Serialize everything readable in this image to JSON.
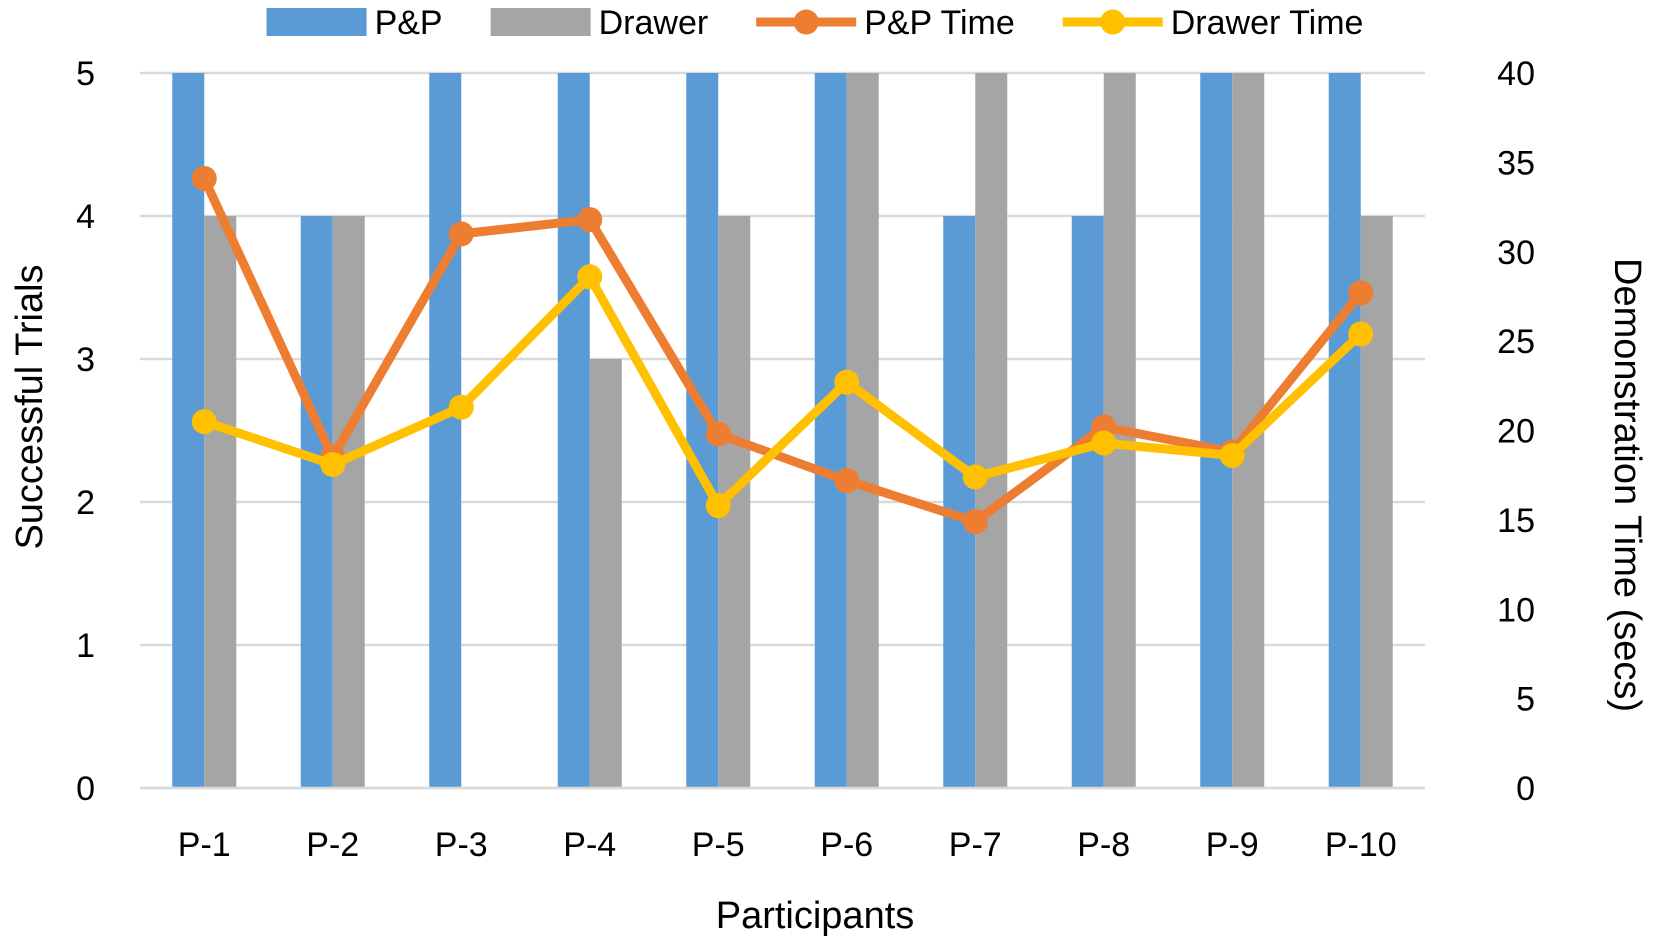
{
  "chart_data": {
    "type": "bar",
    "categories": [
      "P-1",
      "P-2",
      "P-3",
      "P-4",
      "P-5",
      "P-6",
      "P-7",
      "P-8",
      "P-9",
      "P-10"
    ],
    "bar_series": [
      {
        "name": "P&P",
        "color": "#5b9bd5",
        "values": [
          5,
          4,
          5,
          5,
          5,
          5,
          4,
          4,
          5,
          5
        ]
      },
      {
        "name": "Drawer",
        "color": "#a5a5a5",
        "values": [
          4,
          4,
          0,
          3,
          4,
          5,
          5,
          5,
          5,
          4
        ]
      }
    ],
    "line_series": [
      {
        "name": "P&P Time",
        "color": "#ed7d31",
        "values": [
          34.1,
          18.5,
          31.0,
          31.8,
          19.8,
          17.2,
          14.9,
          20.2,
          18.8,
          27.7
        ]
      },
      {
        "name": "Drawer Time",
        "color": "#ffc000",
        "values": [
          20.5,
          18.1,
          21.3,
          28.6,
          15.8,
          22.7,
          17.4,
          19.3,
          18.6,
          25.4
        ]
      }
    ],
    "xlabel": "Participants",
    "ylabel": "Successful Trials",
    "y2label": "Demonstration Time (secs)",
    "ylim": [
      0,
      5
    ],
    "y2lim": [
      0,
      40
    ],
    "yticks": [
      "0",
      "1",
      "2",
      "3",
      "4",
      "5"
    ],
    "y2ticks": [
      "0",
      "5",
      "10",
      "15",
      "20",
      "25",
      "30",
      "35",
      "40"
    ],
    "grid": true,
    "legend_position": "top"
  }
}
